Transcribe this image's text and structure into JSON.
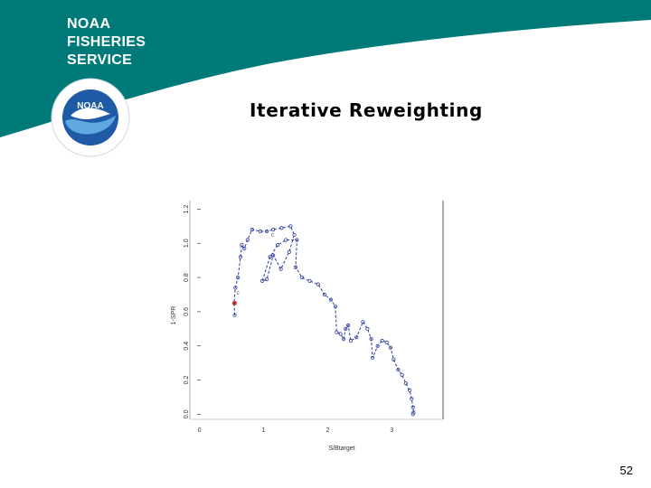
{
  "header": {
    "brand_lines": [
      "NOAA",
      "FISHERIES",
      "SERVICE"
    ],
    "logo_text": "NOAA",
    "colors": {
      "banner": "#007A78",
      "logo_blue": "#1F5AA6",
      "logo_light": "#5FA8E0"
    }
  },
  "slide": {
    "title": "Iterative Reweighting",
    "page_number": "52"
  },
  "chart_data": {
    "type": "line",
    "xlabel": "S/Btarget",
    "ylabel": "1-SPR",
    "xlim": [
      -0.15,
      3.8
    ],
    "ylim": [
      -0.03,
      1.25
    ],
    "x_ticks": [
      0,
      1,
      2,
      3
    ],
    "x_tick_labels": [
      "0",
      "1",
      "2",
      "3"
    ],
    "y_ticks": [
      0.0,
      0.2,
      0.4,
      0.6,
      0.8,
      1.0,
      1.2
    ],
    "y_tick_labels": [
      "0.0",
      "0.2",
      "0.4",
      "0.6",
      "0.8",
      "1.0",
      "1.2"
    ],
    "grid": false,
    "line_style": "dashed",
    "line_color": "#2B3C9A",
    "highlight_color": "#D42020",
    "series": [
      {
        "values_xy": [
          [
            0.55,
            0.58
          ],
          [
            0.54,
            0.65
          ],
          [
            0.56,
            0.74
          ],
          [
            0.6,
            0.8
          ],
          [
            0.64,
            0.92
          ],
          [
            0.66,
            0.99
          ],
          [
            0.7,
            0.97
          ],
          [
            0.75,
            1.02
          ],
          [
            0.82,
            1.08
          ],
          [
            0.95,
            1.07
          ],
          [
            1.05,
            1.07
          ],
          [
            1.15,
            1.08
          ],
          [
            1.28,
            1.09
          ],
          [
            1.42,
            1.1
          ],
          [
            1.48,
            1.05
          ],
          [
            1.4,
            0.95
          ],
          [
            1.27,
            0.85
          ],
          [
            1.15,
            0.93
          ],
          [
            1.05,
            0.79
          ],
          [
            0.98,
            0.78
          ],
          [
            1.1,
            0.92
          ],
          [
            1.22,
            0.99
          ],
          [
            1.35,
            1.02
          ],
          [
            1.52,
            1.02
          ],
          [
            1.5,
            0.86
          ],
          [
            1.6,
            0.8
          ],
          [
            1.72,
            0.78
          ],
          [
            1.85,
            0.76
          ],
          [
            1.95,
            0.7
          ],
          [
            2.05,
            0.67
          ],
          [
            2.12,
            0.63
          ],
          [
            2.14,
            0.48
          ],
          [
            2.2,
            0.47
          ],
          [
            2.25,
            0.44
          ],
          [
            2.28,
            0.5
          ],
          [
            2.32,
            0.52
          ],
          [
            2.36,
            0.43
          ],
          [
            2.45,
            0.45
          ],
          [
            2.55,
            0.54
          ],
          [
            2.62,
            0.5
          ],
          [
            2.68,
            0.44
          ],
          [
            2.7,
            0.33
          ],
          [
            2.78,
            0.4
          ],
          [
            2.85,
            0.43
          ],
          [
            2.92,
            0.42
          ],
          [
            2.98,
            0.39
          ],
          [
            3.03,
            0.32
          ],
          [
            3.1,
            0.26
          ],
          [
            3.16,
            0.23
          ],
          [
            3.22,
            0.18
          ],
          [
            3.28,
            0.14
          ],
          [
            3.31,
            0.09
          ],
          [
            3.33,
            0.04
          ],
          [
            3.34,
            0.01
          ],
          [
            3.33,
            0.0
          ]
        ]
      }
    ],
    "highlight_points": [
      [
        0.55,
        0.65
      ]
    ],
    "annotations": [
      {
        "text": "c",
        "x": 0.58,
        "y": 0.7
      },
      {
        "text": "c",
        "x": 1.12,
        "y": 1.04
      }
    ]
  }
}
